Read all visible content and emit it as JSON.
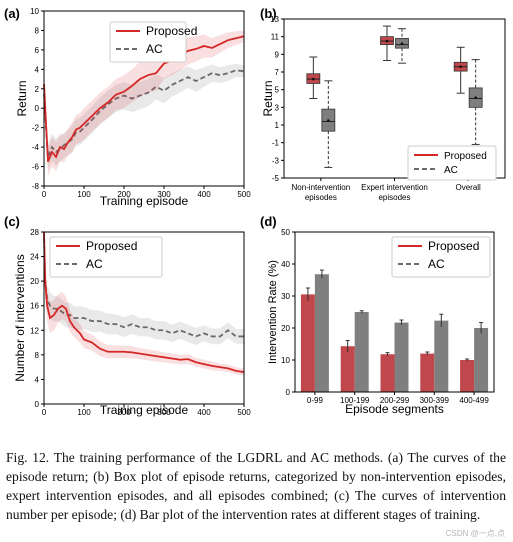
{
  "colors": {
    "proposed": "#d62728",
    "ac": "#6a6a6a",
    "box_proposed": "#c0474b",
    "box_ac": "#7f7f7f"
  },
  "chart_data": [
    {
      "panel": "(a)",
      "type": "line",
      "xlabel": "Training episode",
      "ylabel": "Return",
      "xlim": [
        0,
        500
      ],
      "ylim": [
        -8,
        10
      ],
      "xticks": [
        0,
        100,
        200,
        300,
        400,
        500
      ],
      "yticks": [
        -8,
        -6,
        -4,
        -2,
        0,
        2,
        4,
        6,
        8,
        10
      ],
      "legend": "top-right",
      "series": [
        {
          "name": "Proposed",
          "style": "solid",
          "x": [
            0,
            5,
            10,
            20,
            30,
            40,
            50,
            60,
            70,
            80,
            90,
            100,
            120,
            140,
            160,
            180,
            200,
            220,
            240,
            260,
            280,
            300,
            320,
            340,
            360,
            380,
            400,
            420,
            440,
            460,
            480,
            500
          ],
          "y": [
            2.5,
            -1.5,
            -5.5,
            -4.5,
            -5.0,
            -4.0,
            -4.2,
            -3.5,
            -3.0,
            -2.2,
            -2.0,
            -1.6,
            -0.8,
            0.0,
            0.6,
            1.4,
            1.7,
            2.3,
            3.0,
            3.4,
            3.6,
            4.6,
            4.9,
            5.4,
            5.9,
            6.1,
            6.4,
            6.2,
            6.6,
            7.0,
            7.2,
            7.4
          ],
          "band": [
            0.8,
            1.0,
            1.5,
            1.5,
            1.5,
            1.4,
            1.4,
            1.4,
            1.5,
            1.5,
            1.5,
            1.6,
            1.6,
            1.6,
            1.6,
            1.6,
            1.7,
            1.7,
            1.8,
            1.8,
            1.8,
            1.6,
            1.5,
            1.5,
            1.4,
            1.3,
            1.2,
            1.0,
            0.9,
            0.8,
            0.7,
            0.6
          ]
        },
        {
          "name": "AC",
          "style": "dashed",
          "x": [
            0,
            5,
            10,
            20,
            30,
            40,
            50,
            60,
            70,
            80,
            90,
            100,
            120,
            140,
            160,
            180,
            200,
            220,
            240,
            260,
            280,
            300,
            320,
            340,
            360,
            380,
            400,
            420,
            440,
            460,
            480,
            500
          ],
          "y": [
            1.5,
            -2.0,
            -5.0,
            -4.0,
            -4.5,
            -4.2,
            -3.8,
            -3.5,
            -3.2,
            -2.5,
            -2.4,
            -2.0,
            -1.2,
            -0.3,
            0.4,
            1.0,
            1.3,
            1.0,
            1.3,
            1.6,
            2.2,
            1.8,
            2.4,
            2.8,
            3.2,
            2.8,
            3.2,
            3.6,
            3.4,
            3.6,
            3.9,
            3.8
          ],
          "band": [
            0.8,
            1.0,
            1.4,
            1.4,
            1.4,
            1.3,
            1.3,
            1.3,
            1.4,
            1.4,
            1.4,
            1.4,
            1.4,
            1.4,
            1.4,
            1.4,
            1.4,
            1.4,
            1.4,
            1.4,
            1.3,
            1.3,
            1.2,
            1.2,
            1.1,
            1.1,
            1.0,
            0.9,
            0.8,
            0.8,
            0.7,
            0.6
          ]
        }
      ]
    },
    {
      "panel": "(b)",
      "type": "box",
      "ylabel": "Return",
      "ylim": [
        -5,
        13
      ],
      "yticks": [
        -5,
        -3,
        -1,
        1,
        3,
        5,
        7,
        9,
        11,
        13
      ],
      "categories": [
        "Non-intervention episodes",
        "Expert intervention episodes",
        "Overall"
      ],
      "category_lines": [
        [
          "Non-intervention",
          "episodes"
        ],
        [
          "Expert intervention",
          "episodes"
        ],
        [
          "Overall"
        ]
      ],
      "legend": "bottom-right",
      "series": [
        {
          "name": "Proposed",
          "style": "solid",
          "boxes": [
            {
              "whislo": 4.0,
              "q1": 5.7,
              "med": 6.2,
              "mean": 6.2,
              "q3": 6.8,
              "whishi": 8.7
            },
            {
              "whislo": 8.3,
              "q1": 10.1,
              "med": 10.5,
              "mean": 10.5,
              "q3": 11.0,
              "whishi": 12.2
            },
            {
              "whislo": 4.6,
              "q1": 7.1,
              "med": 7.6,
              "mean": 7.6,
              "q3": 8.1,
              "whishi": 9.8
            }
          ]
        },
        {
          "name": "AC",
          "style": "dashed",
          "boxes": [
            {
              "whislo": -3.8,
              "q1": 0.3,
              "med": 1.4,
              "mean": 1.5,
              "q3": 2.8,
              "whishi": 6.0
            },
            {
              "whislo": 8.0,
              "q1": 9.7,
              "med": 10.1,
              "mean": 10.2,
              "q3": 10.8,
              "whishi": 11.9
            },
            {
              "whislo": -1.2,
              "q1": 3.0,
              "med": 4.0,
              "mean": 4.1,
              "q3": 5.2,
              "whishi": 8.4
            }
          ]
        }
      ]
    },
    {
      "panel": "(c)",
      "type": "line",
      "xlabel": "Training episode",
      "ylabel": "Number of interventions",
      "xlim": [
        0,
        500
      ],
      "ylim": [
        0,
        28
      ],
      "xticks": [
        0,
        100,
        200,
        300,
        400,
        500
      ],
      "yticks": [
        0,
        4,
        8,
        12,
        16,
        20,
        24,
        28
      ],
      "legend": "top-right",
      "series": [
        {
          "name": "Proposed",
          "style": "solid",
          "x": [
            0,
            3,
            8,
            15,
            25,
            35,
            45,
            55,
            65,
            75,
            90,
            100,
            120,
            140,
            160,
            180,
            200,
            220,
            240,
            260,
            280,
            300,
            320,
            340,
            360,
            380,
            400,
            420,
            440,
            460,
            480,
            500
          ],
          "y": [
            28,
            20,
            16,
            14,
            14.5,
            15.5,
            16,
            15.5,
            13.5,
            12.5,
            11.5,
            10.5,
            10,
            9,
            8.5,
            8.5,
            8.5,
            8.4,
            8.2,
            8.0,
            7.8,
            7.6,
            7.4,
            7.2,
            7.3,
            6.8,
            6.5,
            6.2,
            6.0,
            5.8,
            5.4,
            5.2
          ],
          "band": [
            2,
            3,
            2.5,
            2.5,
            2.5,
            2.3,
            2.2,
            2.0,
            1.8,
            1.6,
            1.5,
            1.4,
            1.3,
            1.2,
            1.1,
            1.0,
            1.0,
            1.0,
            0.9,
            0.9,
            0.9,
            0.8,
            0.8,
            0.8,
            0.8,
            0.7,
            0.7,
            0.7,
            0.6,
            0.6,
            0.6,
            0.5
          ]
        },
        {
          "name": "AC",
          "style": "dashed",
          "x": [
            0,
            3,
            8,
            15,
            25,
            35,
            45,
            55,
            65,
            75,
            90,
            100,
            120,
            140,
            160,
            180,
            200,
            220,
            240,
            260,
            280,
            300,
            320,
            340,
            360,
            380,
            400,
            420,
            440,
            460,
            480,
            500
          ],
          "y": [
            27,
            20,
            17,
            16,
            15.5,
            15.5,
            15,
            14.5,
            14.5,
            14,
            14,
            14,
            13.5,
            13.5,
            13,
            13,
            12.5,
            13,
            12.5,
            12.5,
            12,
            12,
            11.5,
            12,
            11.5,
            11,
            11.5,
            11,
            11,
            12,
            11,
            11
          ],
          "band": [
            2,
            2.5,
            2.2,
            2.2,
            2.1,
            2.0,
            2.0,
            2.0,
            2.0,
            1.9,
            1.9,
            1.8,
            1.8,
            1.7,
            1.7,
            1.6,
            1.6,
            1.6,
            1.5,
            1.5,
            1.5,
            1.5,
            1.4,
            1.4,
            1.4,
            1.4,
            1.3,
            1.3,
            1.3,
            1.3,
            1.2,
            1.2
          ]
        }
      ]
    },
    {
      "panel": "(d)",
      "type": "bar",
      "xlabel": "Episode segments",
      "ylabel": "Intervention Rate (%)",
      "ylim": [
        0,
        50
      ],
      "yticks": [
        0,
        10,
        20,
        30,
        40,
        50
      ],
      "categories": [
        "0-99",
        "100-199",
        "200-299",
        "300-399",
        "400-499"
      ],
      "legend": "top-right",
      "series": [
        {
          "name": "Proposed",
          "values": [
            30.5,
            14.3,
            11.8,
            12.0,
            10.0
          ],
          "errors": [
            2.0,
            1.8,
            0.5,
            0.5,
            0.3
          ]
        },
        {
          "name": "AC",
          "values": [
            36.8,
            25.0,
            21.7,
            22.3,
            20.0
          ],
          "errors": [
            1.3,
            0.4,
            0.8,
            2.0,
            1.7
          ]
        }
      ]
    }
  ],
  "caption": {
    "label": "Fig. 12.",
    "text": "The training performance of the LGDRL and AC methods. (a) The curves of the episode return; (b) Box plot of episode returns, categorized by non-intervention episodes, expert intervention episodes, and all episodes combined; (c) The curves of intervention number per episode; (d) Bar plot of the intervention rates at different stages of training."
  },
  "watermark": "CSDN @一点.点"
}
